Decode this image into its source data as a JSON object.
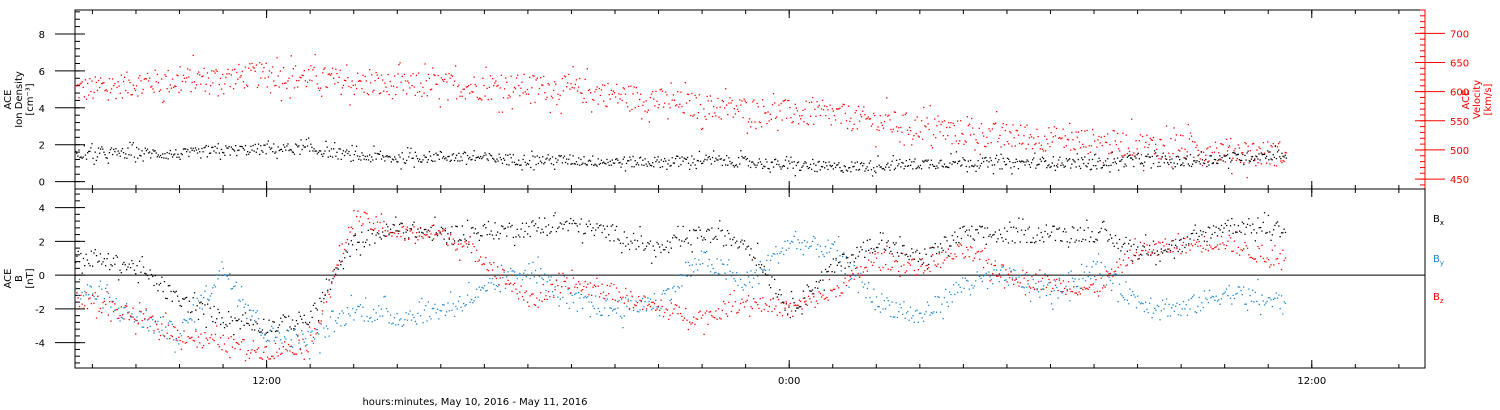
{
  "chart_data": [
    {
      "type": "scatter",
      "panel": "top",
      "xlabel": "hours:minutes, May 10, 2016 - May 11, 2016",
      "x_unit": "hours since 00:00 May 10, 2016",
      "xlim": [
        7.6,
        38.6
      ],
      "x_ticks": [
        {
          "value": 12,
          "label": "12:00"
        },
        {
          "value": 24,
          "label": "0:00"
        },
        {
          "value": 36,
          "label": "12:00"
        }
      ],
      "left_axis": {
        "label_lines": [
          "ACE",
          "Ion Density",
          "[cm⁻³]"
        ],
        "ylim": [
          -0.4,
          9.3
        ],
        "ticks": [
          0,
          2,
          4,
          6,
          8
        ],
        "color": "#000000"
      },
      "right_axis": {
        "label_lines": [
          "ACE",
          "Velocity",
          "[km/s]"
        ],
        "ylim": [
          433,
          740
        ],
        "ticks": [
          450,
          500,
          550,
          600,
          650,
          700
        ],
        "color": "#ff0000"
      },
      "series": [
        {
          "axis": "left",
          "color": "#000000",
          "x": [
            8,
            9,
            10,
            11,
            12,
            13,
            14,
            15,
            16,
            17,
            18,
            19,
            20,
            21,
            22,
            23,
            24,
            25,
            26,
            27,
            28,
            29,
            30,
            31,
            32,
            33,
            34,
            35
          ],
          "y": [
            1.5,
            1.6,
            1.5,
            1.7,
            1.8,
            1.8,
            1.4,
            1.3,
            1.4,
            1.3,
            1.2,
            1.2,
            1.1,
            1.1,
            1.2,
            1.1,
            0.9,
            0.8,
            0.9,
            1.0,
            1.1,
            1.0,
            1.1,
            1.0,
            1.2,
            1.1,
            1.3,
            1.5
          ],
          "spread": 0.3
        },
        {
          "axis": "right",
          "color": "#ff0000",
          "x": [
            8,
            9,
            10,
            11,
            12,
            13,
            14,
            15,
            16,
            17,
            18,
            19,
            20,
            21,
            22,
            23,
            24,
            25,
            26,
            27,
            28,
            29,
            30,
            31,
            32,
            33,
            34,
            35
          ],
          "y": [
            605,
            615,
            620,
            625,
            630,
            625,
            615,
            610,
            612,
            608,
            610,
            605,
            595,
            585,
            575,
            570,
            565,
            560,
            550,
            540,
            530,
            525,
            520,
            515,
            510,
            505,
            500,
            495
          ],
          "spread": 22
        }
      ]
    },
    {
      "type": "scatter",
      "panel": "bottom",
      "xlim": [
        7.6,
        38.6
      ],
      "zero_line": true,
      "left_axis": {
        "label_lines": [
          "ACE",
          "B",
          "[nT]"
        ],
        "ylim": [
          -5.5,
          5.1
        ],
        "ticks": [
          -4,
          -2,
          0,
          2,
          4
        ],
        "color": "#000000"
      },
      "legend_position": "right",
      "series": [
        {
          "name": "Bx",
          "name_main": "B",
          "name_sub": "x",
          "color": "#000000",
          "x": [
            8,
            9,
            10,
            11,
            12,
            13,
            14,
            15,
            16,
            17,
            18,
            19,
            20,
            21,
            22,
            23,
            24,
            25,
            26,
            27,
            28,
            29,
            30,
            31,
            32,
            33,
            34,
            35
          ],
          "y": [
            1.0,
            0.5,
            -1.5,
            -2.5,
            -3.0,
            -2.5,
            2.0,
            2.8,
            2.5,
            2.6,
            2.8,
            3.0,
            2.5,
            1.5,
            2.5,
            2.0,
            -2.0,
            0.5,
            2.0,
            1.0,
            2.5,
            2.4,
            2.5,
            2.5,
            1.5,
            1.8,
            3.0,
            2.8
          ],
          "spread": 0.5
        },
        {
          "name": "By",
          "name_main": "B",
          "name_sub": "y",
          "color": "#1b87d3",
          "x": [
            8,
            9,
            10,
            11,
            12,
            13,
            14,
            15,
            16,
            17,
            18,
            19,
            20,
            21,
            22,
            23,
            24,
            25,
            26,
            27,
            28,
            29,
            30,
            31,
            32,
            33,
            34,
            35
          ],
          "y": [
            -1.0,
            -2.5,
            -3.5,
            0.5,
            -3.5,
            -3.8,
            -2.0,
            -2.5,
            -2.0,
            -1.0,
            0.5,
            -1.5,
            -2.0,
            -1.5,
            1.0,
            -0.5,
            2.0,
            1.5,
            -1.5,
            -2.5,
            -0.5,
            0.0,
            -1.0,
            0.5,
            -1.5,
            -2.0,
            -1.0,
            -1.5
          ],
          "spread": 0.6
        },
        {
          "name": "Bz",
          "name_main": "B",
          "name_sub": "z",
          "color": "#ff0000",
          "x": [
            8,
            9,
            10,
            11,
            12,
            13,
            14,
            15,
            16,
            17,
            18,
            19,
            20,
            21,
            22,
            23,
            24,
            25,
            26,
            27,
            28,
            29,
            30,
            31,
            32,
            33,
            34,
            35
          ],
          "y": [
            -1.5,
            -2.5,
            -3.5,
            -4.0,
            -4.5,
            -4.0,
            3.5,
            2.5,
            2.5,
            1.0,
            -1.5,
            -0.5,
            -1.0,
            -2.0,
            -2.5,
            -1.5,
            -2.0,
            -1.0,
            1.0,
            0.5,
            1.5,
            0.0,
            -0.5,
            -0.8,
            1.5,
            1.8,
            2.0,
            1.0
          ],
          "spread": 0.5
        }
      ]
    }
  ]
}
